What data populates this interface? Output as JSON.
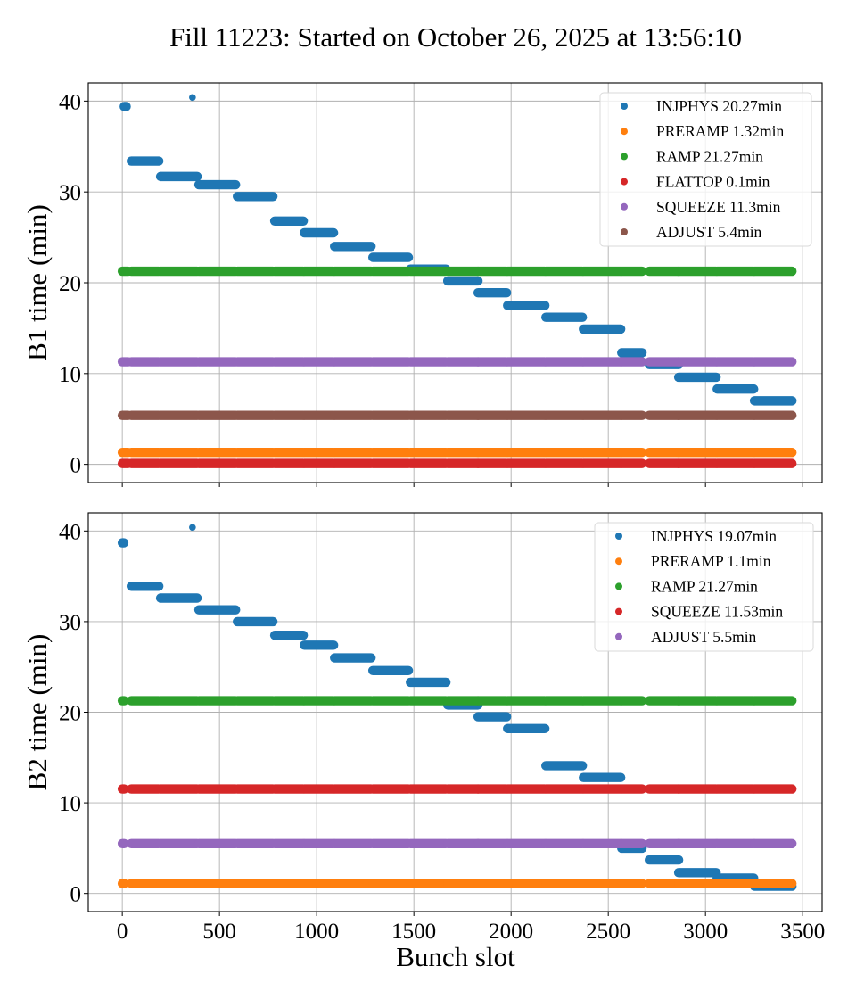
{
  "chart_data": {
    "type": "scatter",
    "title": "Fill 11223: Started on October 26, 2025 at 13:56:10",
    "xlabel": "Bunch slot",
    "xlim": [
      -175,
      3600
    ],
    "xticks": [
      0,
      500,
      1000,
      1500,
      2000,
      2500,
      3000,
      3500
    ],
    "xtick_labels": [
      "0",
      "500",
      "1000",
      "1500",
      "2000",
      "2500",
      "3000",
      "3500"
    ],
    "grid": true,
    "panels": [
      {
        "id": "b1",
        "ylabel": "B1 time (min)",
        "ylim": [
          -2,
          42
        ],
        "yticks": [
          0,
          10,
          20,
          30,
          40
        ],
        "ytick_labels": [
          "0",
          "10",
          "20",
          "30",
          "40"
        ],
        "legend_position": "top-right",
        "show_xtick_labels": false,
        "trains": [
          [
            0,
            30
          ],
          [
            46,
            188
          ],
          [
            197,
            385
          ],
          [
            394,
            583
          ],
          [
            592,
            775
          ],
          [
            784,
            931
          ],
          [
            936,
            1087
          ],
          [
            1092,
            1280
          ],
          [
            1289,
            1472
          ],
          [
            1482,
            1665
          ],
          [
            1674,
            1830
          ],
          [
            1830,
            1977
          ],
          [
            1982,
            2174
          ],
          [
            2179,
            2367
          ],
          [
            2372,
            2564
          ],
          [
            2569,
            2674
          ],
          [
            2711,
            2862
          ],
          [
            2862,
            3055
          ],
          [
            3060,
            3248
          ],
          [
            3252,
            3445
          ]
        ],
        "series": [
          {
            "name": "INJPHYS",
            "legend": "INJPHYS 20.27min",
            "color": "#1f77b4",
            "points": [
              {
                "x": [
                  10,
                  20
                ],
                "y": 39.4
              },
              {
                "x": [
                  361,
                  361
                ],
                "y": 40.4,
                "small": true
              },
              {
                "x": [
                  46,
                  188
                ],
                "y": 33.4
              },
              {
                "x": [
                  197,
                  385
                ],
                "y": 31.7
              },
              {
                "x": [
                  394,
                  583
                ],
                "y": 30.8
              },
              {
                "x": [
                  592,
                  775
                ],
                "y": 29.5
              },
              {
                "x": [
                  784,
                  931
                ],
                "y": 26.8
              },
              {
                "x": [
                  936,
                  1087
                ],
                "y": 25.5
              },
              {
                "x": [
                  1092,
                  1280
                ],
                "y": 24.0
              },
              {
                "x": [
                  1289,
                  1472
                ],
                "y": 22.8
              },
              {
                "x": [
                  1482,
                  1665
                ],
                "y": 21.5
              },
              {
                "x": [
                  1674,
                  1830
                ],
                "y": 20.2
              },
              {
                "x": [
                  1830,
                  1977
                ],
                "y": 18.9
              },
              {
                "x": [
                  1982,
                  2174
                ],
                "y": 17.5
              },
              {
                "x": [
                  2179,
                  2367
                ],
                "y": 16.2
              },
              {
                "x": [
                  2372,
                  2564
                ],
                "y": 14.9
              },
              {
                "x": [
                  2569,
                  2674
                ],
                "y": 12.3
              },
              {
                "x": [
                  2711,
                  2862
                ],
                "y": 11.0
              },
              {
                "x": [
                  2862,
                  3055
                ],
                "y": 9.6
              },
              {
                "x": [
                  3060,
                  3248
                ],
                "y": 8.3
              },
              {
                "x": [
                  3252,
                  3445
                ],
                "y": 7.0
              }
            ]
          },
          {
            "name": "PRERAMP",
            "legend": "PRERAMP 1.32min",
            "color": "#ff7f0e",
            "constant": 1.32
          },
          {
            "name": "RAMP",
            "legend": "RAMP 21.27min",
            "color": "#2ca02c",
            "constant": 21.27
          },
          {
            "name": "FLATTOP",
            "legend": "FLATTOP 0.1min",
            "color": "#d62728",
            "constant": 0.1
          },
          {
            "name": "SQUEEZE",
            "legend": "SQUEEZE 11.3min",
            "color": "#9467bd",
            "constant": 11.3
          },
          {
            "name": "ADJUST",
            "legend": "ADJUST 5.4min",
            "color": "#8c564b",
            "constant": 5.4
          }
        ]
      },
      {
        "id": "b2",
        "ylabel": "B2 time (min)",
        "ylim": [
          -2,
          42
        ],
        "yticks": [
          0,
          10,
          20,
          30,
          40
        ],
        "ytick_labels": [
          "0",
          "10",
          "20",
          "30",
          "40"
        ],
        "legend_position": "top-right",
        "show_xtick_labels": true,
        "trains": [
          [
            0,
            10
          ],
          [
            46,
            188
          ],
          [
            197,
            385
          ],
          [
            394,
            583
          ],
          [
            592,
            775
          ],
          [
            784,
            931
          ],
          [
            936,
            1087
          ],
          [
            1092,
            1280
          ],
          [
            1289,
            1472
          ],
          [
            1482,
            1665
          ],
          [
            1674,
            1830
          ],
          [
            1830,
            1977
          ],
          [
            1982,
            2174
          ],
          [
            2179,
            2367
          ],
          [
            2372,
            2564
          ],
          [
            2569,
            2674
          ],
          [
            2711,
            2862
          ],
          [
            2862,
            3055
          ],
          [
            3060,
            3248
          ],
          [
            3252,
            3445
          ]
        ],
        "series": [
          {
            "name": "INJPHYS",
            "legend": "INJPHYS 19.07min",
            "color": "#1f77b4",
            "points": [
              {
                "x": [
                  0,
                  8
                ],
                "y": 38.7
              },
              {
                "x": [
                  361,
                  361
                ],
                "y": 40.4,
                "small": true
              },
              {
                "x": [
                  46,
                  188
                ],
                "y": 33.9
              },
              {
                "x": [
                  197,
                  385
                ],
                "y": 32.6
              },
              {
                "x": [
                  394,
                  583
                ],
                "y": 31.3
              },
              {
                "x": [
                  592,
                  775
                ],
                "y": 30.0
              },
              {
                "x": [
                  784,
                  931
                ],
                "y": 28.5
              },
              {
                "x": [
                  936,
                  1087
                ],
                "y": 27.4
              },
              {
                "x": [
                  1092,
                  1280
                ],
                "y": 26.0
              },
              {
                "x": [
                  1289,
                  1472
                ],
                "y": 24.6
              },
              {
                "x": [
                  1482,
                  1665
                ],
                "y": 23.3
              },
              {
                "x": [
                  1674,
                  1830
                ],
                "y": 20.8
              },
              {
                "x": [
                  1830,
                  1977
                ],
                "y": 19.5
              },
              {
                "x": [
                  1982,
                  2174
                ],
                "y": 18.2
              },
              {
                "x": [
                  2179,
                  2367
                ],
                "y": 14.1
              },
              {
                "x": [
                  2372,
                  2564
                ],
                "y": 12.8
              },
              {
                "x": [
                  2569,
                  2674
                ],
                "y": 5.0
              },
              {
                "x": [
                  2711,
                  2862
                ],
                "y": 3.7
              },
              {
                "x": [
                  2862,
                  3055
                ],
                "y": 2.3
              },
              {
                "x": [
                  3060,
                  3248
                ],
                "y": 1.7
              },
              {
                "x": [
                  3252,
                  3445
                ],
                "y": 0.8
              }
            ]
          },
          {
            "name": "PRERAMP",
            "legend": "PRERAMP 1.1min",
            "color": "#ff7f0e",
            "constant": 1.1
          },
          {
            "name": "RAMP",
            "legend": "RAMP 21.27min",
            "color": "#2ca02c",
            "constant": 21.27
          },
          {
            "name": "SQUEEZE",
            "legend": "SQUEEZE 11.53min",
            "color": "#d62728",
            "constant": 11.53
          },
          {
            "name": "ADJUST",
            "legend": "ADJUST 5.5min",
            "color": "#9467bd",
            "constant": 5.5
          }
        ]
      }
    ]
  }
}
